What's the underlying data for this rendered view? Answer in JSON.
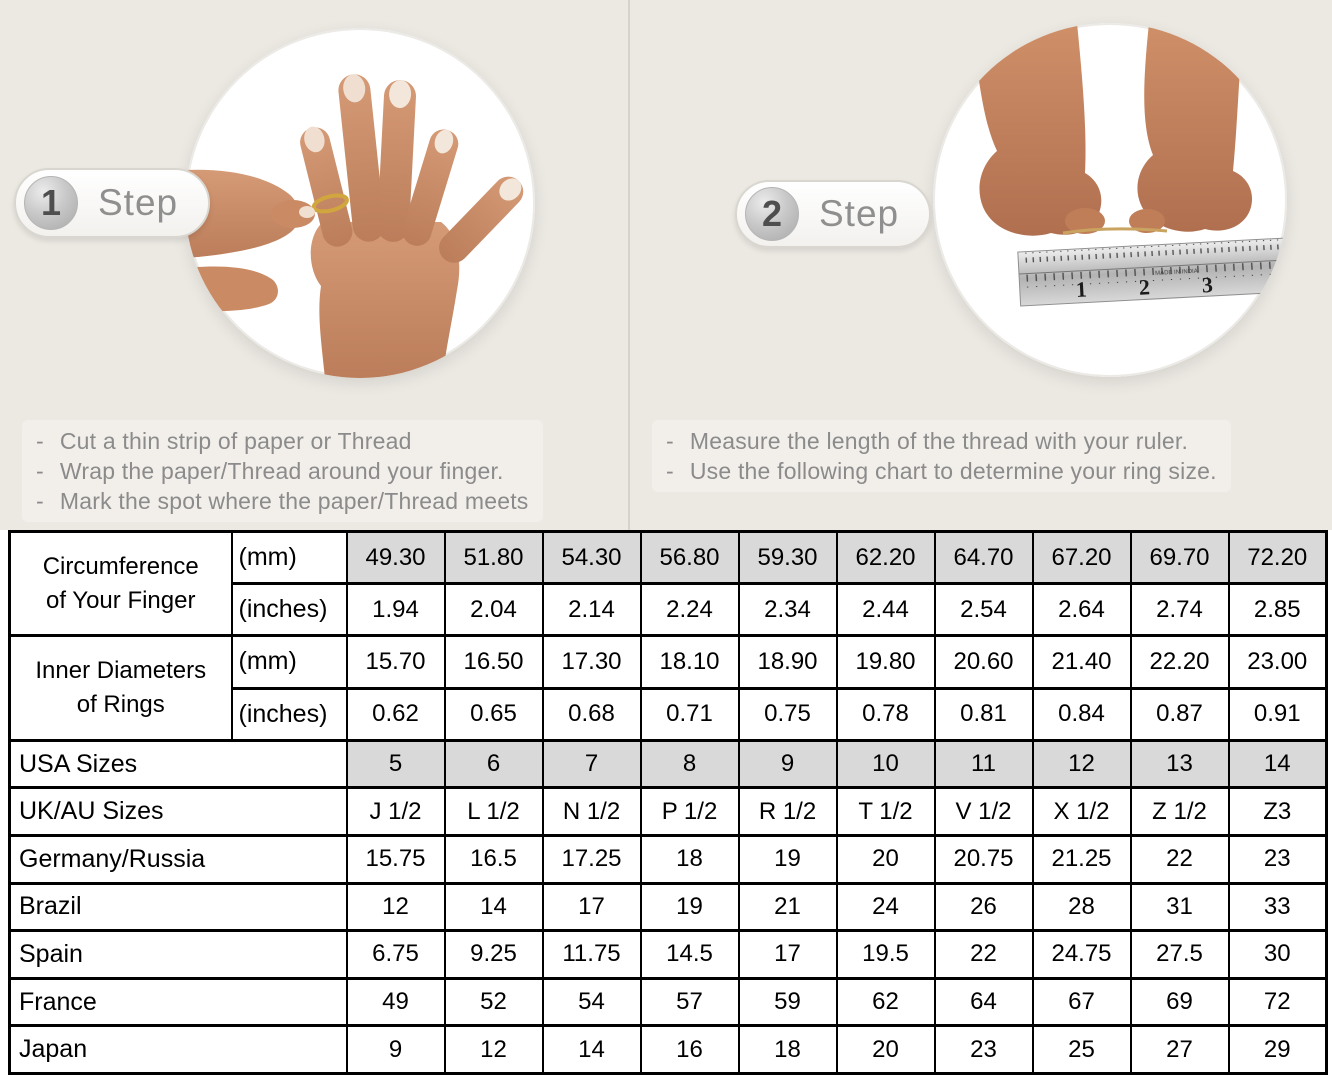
{
  "ui": {
    "bullet": "-"
  },
  "steps": [
    {
      "number": "1",
      "label": "Step",
      "instructions": [
        "Cut a thin strip of paper or Thread",
        "Wrap the paper/Thread around your finger.",
        "Mark the spot where the paper/Thread meets"
      ]
    },
    {
      "number": "2",
      "label": "Step",
      "instructions": [
        "Measure the length of the thread with your ruler.",
        "Use the following chart to determine your ring size."
      ]
    }
  ],
  "ruler": {
    "numbers": [
      "1",
      "2",
      "3"
    ],
    "made_in": "MADE IN INDIA"
  },
  "table": {
    "rows": [
      {
        "type": "group-start",
        "group_label": [
          "Circumference",
          "of Your Finger"
        ],
        "unit": "(mm)",
        "shaded": true,
        "values": [
          "49.30",
          "51.80",
          "54.30",
          "56.80",
          "59.30",
          "62.20",
          "64.70",
          "67.20",
          "69.70",
          "72.20"
        ]
      },
      {
        "type": "group-cont",
        "unit": "(inches)",
        "shaded": false,
        "values": [
          "1.94",
          "2.04",
          "2.14",
          "2.24",
          "2.34",
          "2.44",
          "2.54",
          "2.64",
          "2.74",
          "2.85"
        ]
      },
      {
        "type": "group-start",
        "group_label": [
          "Inner Diameters",
          "of Rings"
        ],
        "unit": "(mm)",
        "shaded": false,
        "values": [
          "15.70",
          "16.50",
          "17.30",
          "18.10",
          "18.90",
          "19.80",
          "20.60",
          "21.40",
          "22.20",
          "23.00"
        ]
      },
      {
        "type": "group-cont",
        "unit": "(inches)",
        "shaded": false,
        "values": [
          "0.62",
          "0.65",
          "0.68",
          "0.71",
          "0.75",
          "0.78",
          "0.81",
          "0.84",
          "0.87",
          "0.91"
        ]
      },
      {
        "type": "single",
        "label": "USA Sizes",
        "shaded": true,
        "values": [
          "5",
          "6",
          "7",
          "8",
          "9",
          "10",
          "11",
          "12",
          "13",
          "14"
        ]
      },
      {
        "type": "single",
        "label": "UK/AU Sizes",
        "shaded": false,
        "values": [
          "J 1/2",
          "L 1/2",
          "N 1/2",
          "P 1/2",
          "R 1/2",
          "T 1/2",
          "V 1/2",
          "X 1/2",
          "Z 1/2",
          "Z3"
        ]
      },
      {
        "type": "single",
        "label": "Germany/Russia",
        "shaded": false,
        "values": [
          "15.75",
          "16.5",
          "17.25",
          "18",
          "19",
          "20",
          "20.75",
          "21.25",
          "22",
          "23"
        ]
      },
      {
        "type": "single",
        "label": "Brazil",
        "shaded": false,
        "values": [
          "12",
          "14",
          "17",
          "19",
          "21",
          "24",
          "26",
          "28",
          "31",
          "33"
        ]
      },
      {
        "type": "single",
        "label": "Spain",
        "shaded": false,
        "values": [
          "6.75",
          "9.25",
          "11.75",
          "14.5",
          "17",
          "19.5",
          "22",
          "24.75",
          "27.5",
          "30"
        ]
      },
      {
        "type": "single",
        "label": "France",
        "shaded": false,
        "values": [
          "49",
          "52",
          "54",
          "57",
          "59",
          "62",
          "64",
          "67",
          "69",
          "72"
        ]
      },
      {
        "type": "single",
        "label": "Japan",
        "shaded": false,
        "values": [
          "9",
          "12",
          "14",
          "16",
          "18",
          "20",
          "23",
          "25",
          "27",
          "29"
        ]
      }
    ]
  },
  "colors": {
    "background_beige": "#ece9e3",
    "shaded_cell": "#d9d9d9",
    "gold_ring": "#d2a63e",
    "gray_text": "#8b8b8b"
  }
}
